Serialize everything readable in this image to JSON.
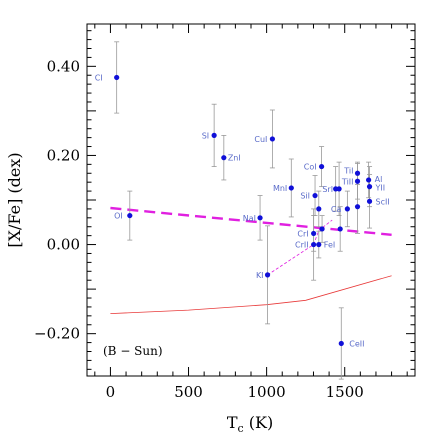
{
  "chart_data": {
    "type": "scatter",
    "xlabel_main": "T",
    "xlabel_sub": "c",
    "xlabel_unit": " (K)",
    "ylabel": "[X/Fe] (dex)",
    "annotation": "(B − Sun)",
    "xlim": [
      -150,
      1950
    ],
    "ylim": [
      -0.295,
      0.495
    ],
    "x_ticks": [
      0,
      500,
      1000,
      1500
    ],
    "y_ticks": [
      -0.2,
      0.0,
      0.2,
      0.4
    ],
    "y_tick_labels": [
      "−0.20",
      "0.00",
      "0.20",
      "0.40"
    ],
    "colors": {
      "point": "#1010d8",
      "label": "#5b6cc9",
      "error": "#999999",
      "fit": "#e020e0",
      "red": "#e83a3a"
    },
    "points": [
      {
        "label": "CI",
        "x": 40,
        "y": 0.375,
        "err": 0.08,
        "lx": -14,
        "ly": 3,
        "anchor": "end"
      },
      {
        "label": "OI",
        "x": 124,
        "y": 0.065,
        "err": 0.055,
        "lx": -7,
        "ly": 3,
        "anchor": "end"
      },
      {
        "label": "SI",
        "x": 664,
        "y": 0.245,
        "err": 0.07,
        "lx": -5,
        "ly": 3,
        "anchor": "end"
      },
      {
        "label": "ZnI",
        "x": 726,
        "y": 0.195,
        "err": 0.05,
        "lx": 4,
        "ly": 3,
        "anchor": "start"
      },
      {
        "label": "CuI",
        "x": 1037,
        "y": 0.237,
        "err": 0.065,
        "lx": -5,
        "ly": 3,
        "anchor": "end"
      },
      {
        "label": "NaI",
        "x": 958,
        "y": 0.06,
        "err": 0.05,
        "lx": -4,
        "ly": 3,
        "anchor": "end"
      },
      {
        "label": "KI",
        "x": 1006,
        "y": -0.068,
        "err": 0.11,
        "lx": -4,
        "ly": 3,
        "anchor": "end"
      },
      {
        "label": "MnI",
        "x": 1158,
        "y": 0.127,
        "err": 0.065,
        "lx": -4,
        "ly": 3,
        "anchor": "end"
      },
      {
        "label": "CoI",
        "x": 1352,
        "y": 0.175,
        "err": 0.045,
        "lx": -5,
        "ly": 3,
        "anchor": "end"
      },
      {
        "label": "SiI",
        "x": 1310,
        "y": 0.11,
        "err": 0.045,
        "lx": -5,
        "ly": 3,
        "anchor": "end"
      },
      {
        "label": "SrI",
        "x": 1464,
        "y": 0.125,
        "err": 0.06,
        "lx": -6,
        "ly": 3,
        "anchor": "end"
      },
      {
        "label": "",
        "x": 1442,
        "y": 0.125,
        "err": 0.05,
        "lx": 0,
        "ly": 0,
        "anchor": "start"
      },
      {
        "label": "CrI",
        "x": 1301,
        "y": 0.025,
        "err": 0.04,
        "lx": -5,
        "ly": 3,
        "anchor": "end"
      },
      {
        "label": "CrII",
        "x": 1301,
        "y": 0.0,
        "err": 0.08,
        "lx": -5,
        "ly": 3,
        "anchor": "end"
      },
      {
        "label": "FeI",
        "x": 1334,
        "y": 0.0,
        "err": 0.03,
        "lx": 5,
        "ly": 3,
        "anchor": "start"
      },
      {
        "label": "",
        "x": 1334,
        "y": 0.08,
        "err": 0.04,
        "lx": 0,
        "ly": 0,
        "anchor": "start"
      },
      {
        "label": "",
        "x": 1355,
        "y": 0.035,
        "err": 0.03,
        "lx": 0,
        "ly": 0,
        "anchor": "start"
      },
      {
        "label": "Ca",
        "x": 1517,
        "y": 0.08,
        "err": 0.04,
        "lx": -6,
        "ly": 3,
        "anchor": "end"
      },
      {
        "label": "",
        "x": 1471,
        "y": 0.035,
        "err": 0.05,
        "lx": 0,
        "ly": 0,
        "anchor": "start"
      },
      {
        "label": "TiI",
        "x": 1582,
        "y": 0.16,
        "err": 0.025,
        "lx": -4,
        "ly": 0,
        "anchor": "end"
      },
      {
        "label": "TiII",
        "x": 1582,
        "y": 0.142,
        "err": 0.04,
        "lx": -4,
        "ly": 3,
        "anchor": "end"
      },
      {
        "label": "",
        "x": 1582,
        "y": 0.085,
        "err": 0.06,
        "lx": 0,
        "ly": 0,
        "anchor": "start"
      },
      {
        "label": "Al",
        "x": 1653,
        "y": 0.145,
        "err": 0.04,
        "lx": 6,
        "ly": 2,
        "anchor": "start"
      },
      {
        "label": "YII",
        "x": 1659,
        "y": 0.13,
        "err": 0.045,
        "lx": 6,
        "ly": 4,
        "anchor": "start"
      },
      {
        "label": "ScII",
        "x": 1659,
        "y": 0.097,
        "err": 0.06,
        "lx": 6,
        "ly": 3,
        "anchor": "start"
      },
      {
        "label": "CeII",
        "x": 1478,
        "y": -0.222,
        "err": 0.08,
        "lx": 8,
        "ly": 3,
        "anchor": "start"
      }
    ],
    "fit_line": {
      "x": [
        0,
        1800
      ],
      "y": [
        0.082,
        0.022
      ]
    },
    "dotted_line": {
      "x": [
        1006,
        1300,
        1335,
        1420
      ],
      "y": [
        -0.068,
        0.0,
        0.032,
        0.055
      ]
    },
    "red_line": {
      "x": [
        0,
        500,
        1000,
        1250,
        1800
      ],
      "y": [
        -0.155,
        -0.147,
        -0.135,
        -0.125,
        -0.07
      ]
    }
  }
}
